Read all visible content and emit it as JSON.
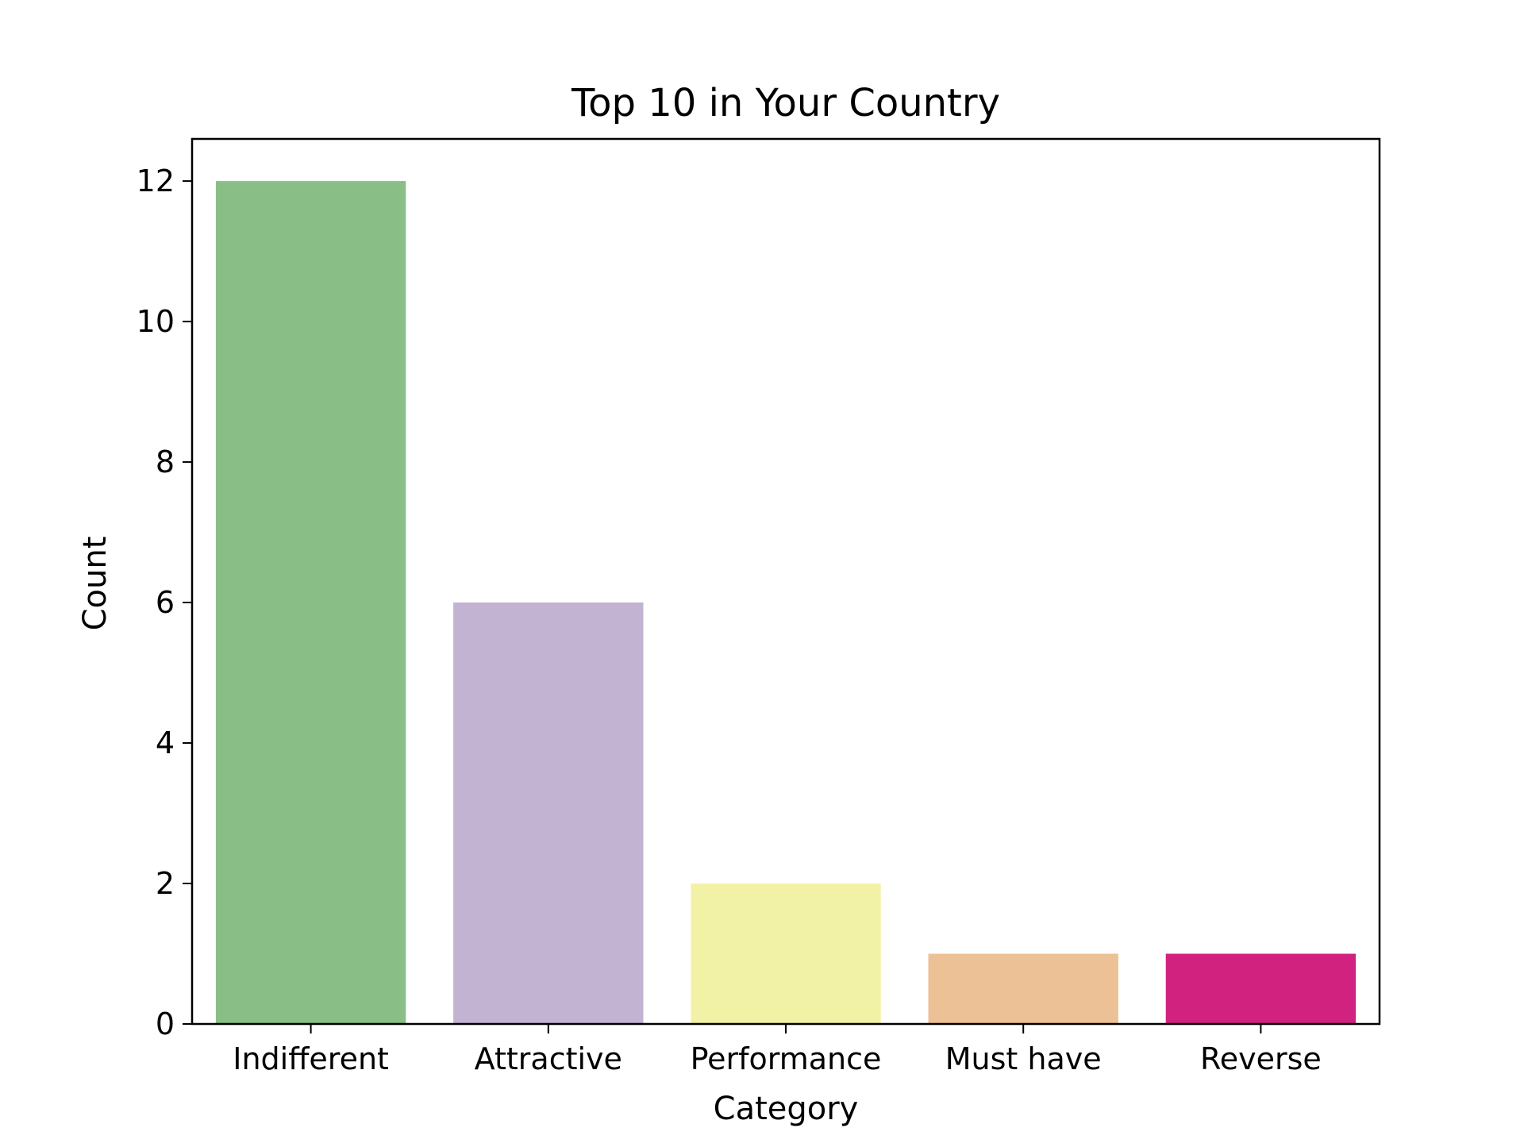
{
  "chart_data": {
    "type": "bar",
    "title": "Top 10 in Your Country",
    "xlabel": "Category",
    "ylabel": "Count",
    "categories": [
      "Indifferent",
      "Attractive",
      "Performance",
      "Must have",
      "Reverse"
    ],
    "values": [
      12,
      6,
      2,
      1,
      1
    ],
    "colors": [
      "#89bf86",
      "#c1b3d1",
      "#f2f2a6",
      "#ecc196",
      "#d12280"
    ],
    "ylim": [
      0,
      12.6
    ],
    "yticks": [
      0,
      2,
      4,
      6,
      8,
      10,
      12
    ],
    "grid": false,
    "legend": "none"
  }
}
